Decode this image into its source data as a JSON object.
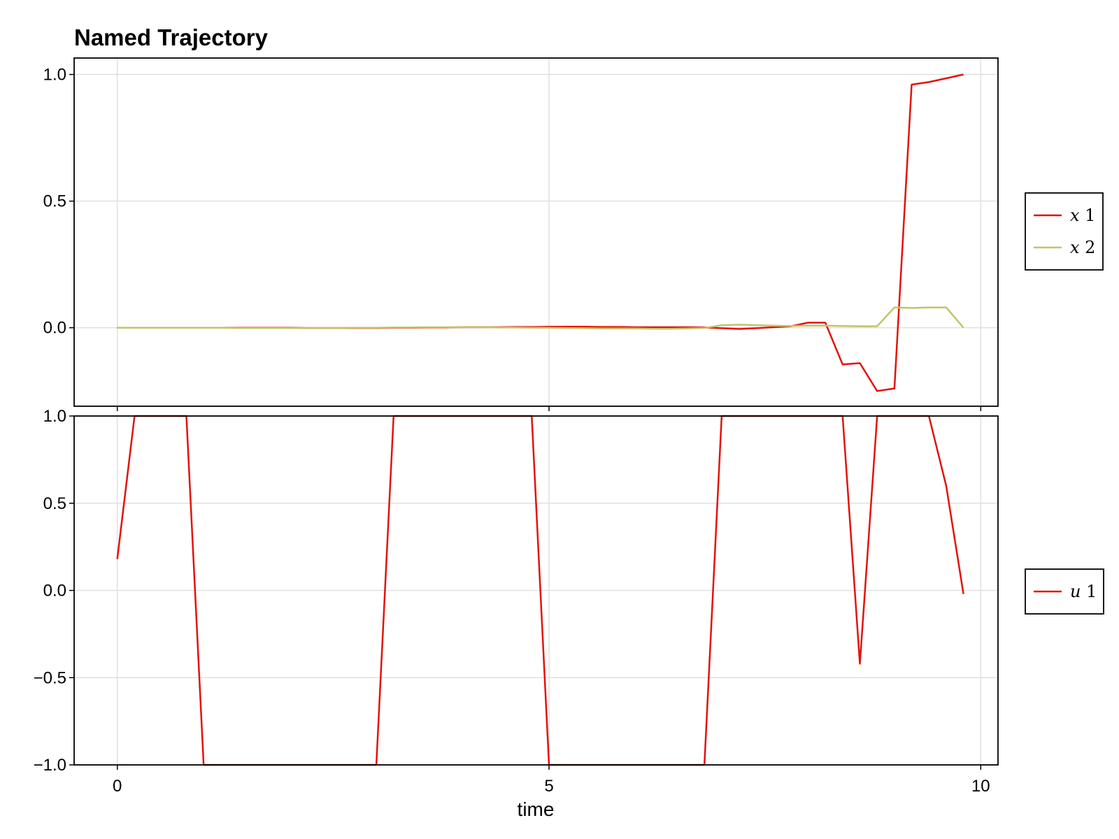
{
  "colors": {
    "x1": "#e3120b",
    "x2": "#c2c46a",
    "u1": "#e3120b",
    "grid": "#e0e0e0",
    "axis": "#000000"
  },
  "chart_data": [
    {
      "type": "line",
      "title": "Named Trajectory",
      "xlabel": "",
      "ylabel": "",
      "xlim": [
        -0.5,
        10.2
      ],
      "ylim": [
        -0.31,
        1.065
      ],
      "xticks": [
        0,
        5,
        10
      ],
      "show_xtick_labels": false,
      "yticks": [
        0.0,
        0.5,
        1.0
      ],
      "ytick_labels": [
        "0.0",
        "0.5",
        "1.0"
      ],
      "grid": true,
      "legend_position": "right",
      "legend_entries": [
        "x 1",
        "x 2"
      ],
      "series": [
        {
          "name": "x 1",
          "x": [
            0.0,
            0.2,
            0.4,
            0.6,
            0.8,
            1.0,
            1.2,
            1.4,
            1.6,
            1.8,
            2.0,
            2.2,
            2.4,
            2.6,
            2.8,
            3.0,
            3.2,
            3.4,
            3.6,
            3.8,
            4.0,
            4.2,
            4.4,
            4.6,
            4.8,
            5.0,
            5.2,
            5.4,
            5.6,
            5.8,
            6.0,
            6.2,
            6.4,
            6.6,
            6.8,
            7.0,
            7.2,
            7.4,
            7.6,
            7.8,
            8.0,
            8.2,
            8.4,
            8.6,
            8.8,
            9.0,
            9.2,
            9.4,
            9.6,
            9.8
          ],
          "y": [
            0.0,
            0.0,
            0.0,
            0.0,
            0.0,
            0.0,
            0.0,
            0.0,
            0.0,
            0.0,
            0.0,
            -0.001,
            -0.001,
            -0.001,
            -0.001,
            -0.001,
            0.0,
            0.0,
            0.001,
            0.001,
            0.002,
            0.002,
            0.002,
            0.003,
            0.003,
            0.004,
            0.004,
            0.004,
            0.003,
            0.003,
            0.002,
            0.002,
            0.002,
            0.002,
            0.001,
            -0.002,
            -0.005,
            -0.002,
            0.002,
            0.006,
            0.02,
            0.02,
            -0.145,
            -0.14,
            -0.25,
            -0.24,
            0.96,
            0.97,
            0.985,
            1.0
          ]
        },
        {
          "name": "x 2",
          "x": [
            0.0,
            0.2,
            0.4,
            0.6,
            0.8,
            1.0,
            1.2,
            1.4,
            1.6,
            1.8,
            2.0,
            2.2,
            2.4,
            2.6,
            2.8,
            3.0,
            3.2,
            3.4,
            3.6,
            3.8,
            4.0,
            4.2,
            4.4,
            4.6,
            4.8,
            5.0,
            5.2,
            5.4,
            5.6,
            5.8,
            6.0,
            6.2,
            6.4,
            6.6,
            6.8,
            7.0,
            7.2,
            7.4,
            7.6,
            7.8,
            8.0,
            8.2,
            8.4,
            8.6,
            8.8,
            9.0,
            9.2,
            9.4,
            9.6,
            9.8
          ],
          "y": [
            0.0,
            0.0,
            0.0,
            0.0,
            0.0,
            0.0,
            0.0,
            -0.001,
            -0.001,
            -0.001,
            -0.001,
            -0.001,
            -0.001,
            -0.001,
            0.0,
            0.0,
            0.001,
            0.001,
            0.002,
            0.002,
            0.002,
            0.002,
            0.001,
            0.001,
            0.0,
            0.0,
            -0.001,
            -0.002,
            -0.003,
            -0.003,
            -0.003,
            -0.004,
            -0.004,
            -0.003,
            -0.001,
            0.01,
            0.012,
            0.01,
            0.008,
            0.007,
            0.008,
            0.008,
            0.007,
            0.006,
            0.006,
            0.08,
            0.078,
            0.08,
            0.08,
            0.0
          ]
        }
      ]
    },
    {
      "type": "line",
      "title": "",
      "xlabel": "time",
      "ylabel": "",
      "xlim": [
        -0.5,
        10.2
      ],
      "ylim": [
        -1.0,
        1.0
      ],
      "xticks": [
        0,
        5,
        10
      ],
      "xtick_labels": [
        "0",
        "5",
        "10"
      ],
      "yticks": [
        -1.0,
        -0.5,
        0.0,
        0.5,
        1.0
      ],
      "ytick_labels": [
        "−1.0",
        "−0.5",
        "0.0",
        "0.5",
        "1.0"
      ],
      "grid": true,
      "legend_position": "right",
      "legend_entries": [
        "u 1"
      ],
      "series": [
        {
          "name": "u 1",
          "x": [
            0.0,
            0.2,
            0.4,
            0.6,
            0.8,
            1.0,
            1.2,
            1.4,
            1.6,
            1.8,
            2.0,
            2.2,
            2.4,
            2.6,
            2.8,
            3.0,
            3.2,
            3.4,
            3.6,
            3.8,
            4.0,
            4.2,
            4.4,
            4.6,
            4.8,
            5.0,
            5.2,
            5.4,
            5.6,
            5.8,
            6.0,
            6.2,
            6.4,
            6.6,
            6.8,
            7.0,
            7.2,
            7.4,
            7.6,
            7.8,
            8.0,
            8.2,
            8.4,
            8.6,
            8.8,
            9.0,
            9.2,
            9.4,
            9.6,
            9.8
          ],
          "y": [
            0.18,
            1.0,
            1.0,
            1.0,
            1.0,
            -1.0,
            -1.0,
            -1.0,
            -1.0,
            -1.0,
            -1.0,
            -1.0,
            -1.0,
            -1.0,
            -1.0,
            -1.0,
            1.0,
            1.0,
            1.0,
            1.0,
            1.0,
            1.0,
            1.0,
            1.0,
            1.0,
            -1.0,
            -1.0,
            -1.0,
            -1.0,
            -1.0,
            -1.0,
            -1.0,
            -1.0,
            -1.0,
            -1.0,
            1.0,
            1.0,
            1.0,
            1.0,
            1.0,
            1.0,
            1.0,
            1.0,
            -0.42,
            1.0,
            1.0,
            1.0,
            1.0,
            0.6,
            -0.02
          ]
        }
      ]
    }
  ]
}
